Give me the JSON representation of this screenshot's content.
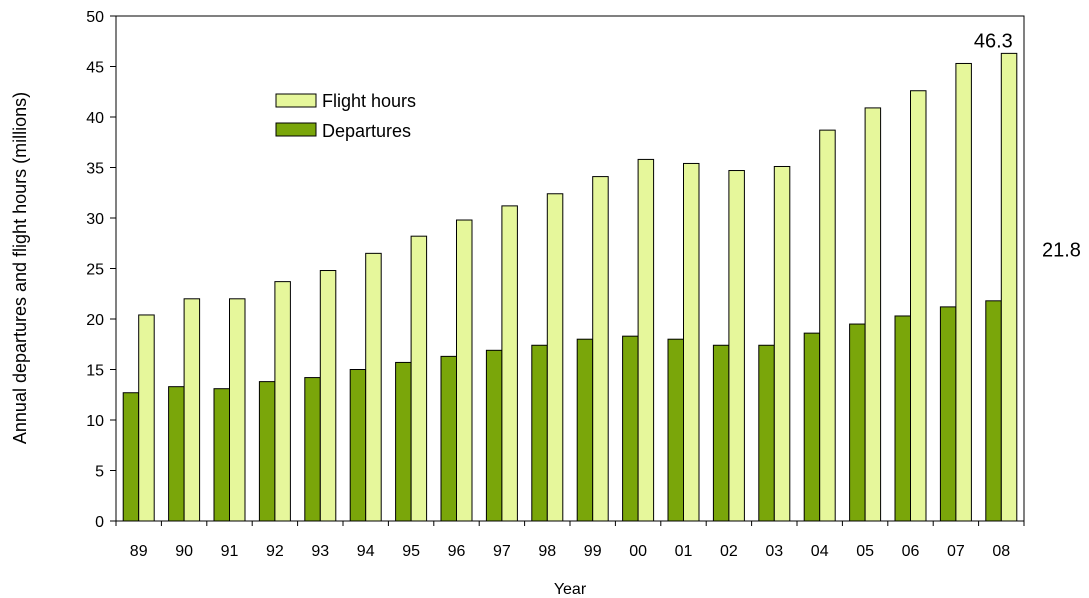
{
  "chart_data": {
    "type": "bar",
    "title": "",
    "xlabel": "Year",
    "ylabel": "Annual departures and flight hours (millions)",
    "categories": [
      "89",
      "90",
      "91",
      "92",
      "93",
      "94",
      "95",
      "96",
      "97",
      "98",
      "99",
      "00",
      "01",
      "02",
      "03",
      "04",
      "05",
      "06",
      "07",
      "08"
    ],
    "series": [
      {
        "name": "Departures",
        "color": "#7aa60a",
        "values": [
          12.7,
          13.3,
          13.1,
          13.8,
          14.2,
          15.0,
          15.7,
          16.3,
          16.9,
          17.4,
          18.0,
          18.3,
          18.0,
          17.4,
          17.4,
          18.6,
          19.5,
          20.3,
          21.2,
          21.8
        ]
      },
      {
        "name": "Flight hours",
        "color": "#e6f79b",
        "values": [
          20.4,
          22.0,
          22.0,
          23.7,
          24.8,
          26.5,
          28.2,
          29.8,
          31.2,
          32.4,
          34.1,
          35.8,
          35.4,
          34.7,
          35.1,
          38.7,
          40.9,
          42.6,
          45.3,
          46.3
        ]
      }
    ],
    "ylim": [
      0,
      50
    ],
    "yticks": [
      0,
      5,
      10,
      15,
      20,
      25,
      30,
      35,
      40,
      45,
      50
    ],
    "grid": false,
    "legend": {
      "placement": "top-left",
      "entries": [
        "Flight hours",
        "Departures"
      ]
    },
    "annotations": [
      {
        "text": "46.3",
        "category": "08",
        "series": "Flight hours",
        "value": 46.3
      },
      {
        "text": "21.8",
        "category": "08",
        "series": "Departures",
        "value": 21.8
      }
    ]
  }
}
